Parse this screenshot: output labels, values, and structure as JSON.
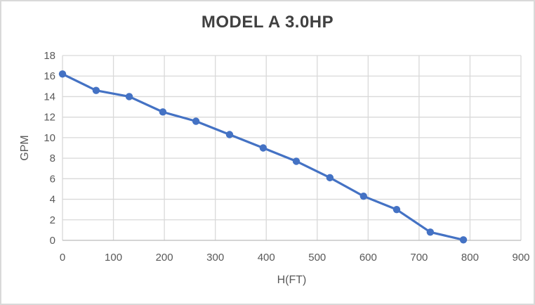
{
  "window": {
    "background_color": "#FFFFFF",
    "border_color": "#D9D9D9"
  },
  "chart_data": {
    "type": "line",
    "title": "MODEL A 3.0HP",
    "xlabel": "H(FT)",
    "ylabel": "GPM",
    "x": [
      0,
      66,
      131,
      197,
      262,
      328,
      394,
      459,
      525,
      591,
      656,
      722,
      787
    ],
    "series": [
      {
        "name": "MODEL A 3.0HP",
        "values": [
          16.2,
          14.6,
          14.0,
          12.5,
          11.6,
          10.3,
          9.0,
          7.7,
          6.1,
          4.3,
          3.0,
          0.8,
          0.05
        ]
      }
    ],
    "xlim": [
      0,
      900
    ],
    "ylim": [
      0,
      18
    ],
    "xticks": [
      0,
      100,
      200,
      300,
      400,
      500,
      600,
      700,
      800,
      900
    ],
    "yticks": [
      0,
      2,
      4,
      6,
      8,
      10,
      12,
      14,
      16,
      18
    ],
    "grid": true,
    "legend_position": "none",
    "marker": "circle",
    "colors": {
      "line": "#4472C4",
      "marker": "#4472C4",
      "gridline": "#D9D9D9",
      "axis_line": "#BFBFBF",
      "tick_label": "#595959",
      "axis_title": "#595959",
      "chart_title": "#404040"
    }
  }
}
